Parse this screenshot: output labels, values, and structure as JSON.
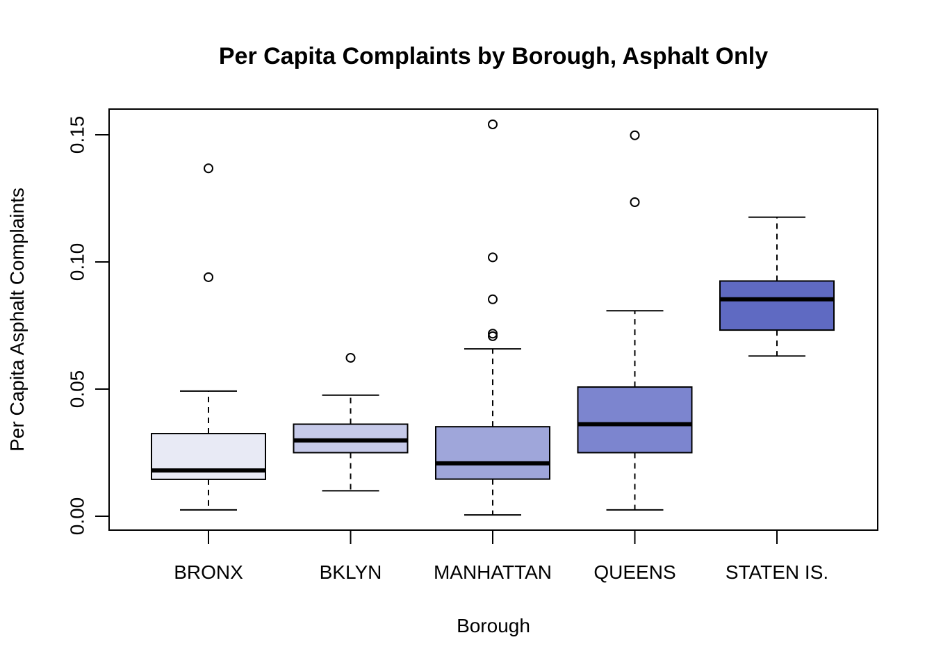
{
  "chart_data": {
    "type": "box",
    "title": "Per Capita Complaints by Borough, Asphalt Only",
    "xlabel": "Borough",
    "ylabel": "Per Capita Asphalt Complaints",
    "ylim": [
      0.0,
      0.16
    ],
    "yticks": [
      {
        "value": 0.0,
        "label": "0.00"
      },
      {
        "value": 0.05,
        "label": "0.05"
      },
      {
        "value": 0.1,
        "label": "0.10"
      },
      {
        "value": 0.15,
        "label": "0.15"
      }
    ],
    "grid": false,
    "legend": "none",
    "categories": [
      "BRONX",
      "BKLYN",
      "MANHATTAN",
      "QUEENS",
      "STATEN IS."
    ],
    "boxes": [
      {
        "category": "BRONX",
        "lower_whisker": 0.0025,
        "q1": 0.0145,
        "median": 0.018,
        "q3": 0.0325,
        "upper_whisker": 0.0492,
        "outliers": [
          0.094,
          0.1368
        ],
        "fill": "#e8eaf5"
      },
      {
        "category": "BKLYN",
        "lower_whisker": 0.01,
        "q1": 0.025,
        "median": 0.0298,
        "q3": 0.0362,
        "upper_whisker": 0.0476,
        "outliers": [
          0.0623
        ],
        "fill": "#c6cae9"
      },
      {
        "category": "MANHATTAN",
        "lower_whisker": 0.0005,
        "q1": 0.0146,
        "median": 0.0208,
        "q3": 0.0352,
        "upper_whisker": 0.0658,
        "outliers": [
          0.0708,
          0.0718,
          0.0853,
          0.1018,
          0.1541
        ],
        "fill": "#9fa6da"
      },
      {
        "category": "QUEENS",
        "lower_whisker": 0.0025,
        "q1": 0.025,
        "median": 0.0362,
        "q3": 0.0508,
        "upper_whisker": 0.0808,
        "outliers": [
          0.1235,
          0.1498
        ],
        "fill": "#7c85cf"
      },
      {
        "category": "STATEN IS.",
        "lower_whisker": 0.063,
        "q1": 0.0732,
        "median": 0.0853,
        "q3": 0.0925,
        "upper_whisker": 0.1176,
        "outliers": [],
        "fill": "#5f6ac2"
      }
    ]
  }
}
